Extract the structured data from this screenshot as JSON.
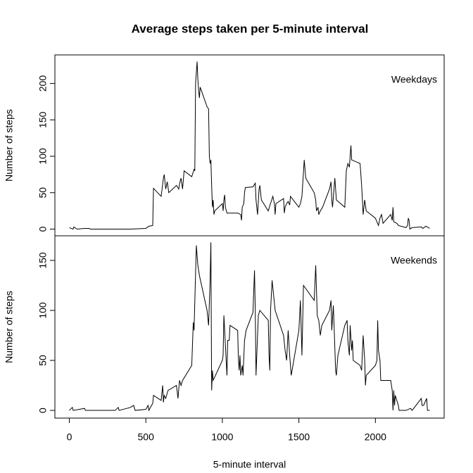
{
  "chart_data": [
    {
      "type": "line",
      "title": "Average steps taken per 5-minute interval",
      "ylabel": "Number of steps",
      "label": "Weekdays",
      "color": "#000000",
      "x": [
        0,
        25,
        30,
        50,
        100,
        130,
        135,
        200,
        300,
        400,
        500,
        520,
        545,
        550,
        600,
        615,
        620,
        630,
        640,
        650,
        700,
        715,
        720,
        730,
        740,
        750,
        800,
        815,
        820,
        825,
        835,
        840,
        845,
        850,
        855,
        900,
        910,
        915,
        920,
        925,
        930,
        935,
        940,
        945,
        950,
        1000,
        1005,
        1010,
        1015,
        1020,
        1030,
        1100,
        1120,
        1125,
        1130,
        1140,
        1145,
        1150,
        1200,
        1215,
        1220,
        1230,
        1240,
        1245,
        1255,
        1300,
        1310,
        1330,
        1340,
        1345,
        1350,
        1400,
        1405,
        1410,
        1420,
        1430,
        1440,
        1445,
        1500,
        1510,
        1520,
        1535,
        1545,
        1600,
        1610,
        1615,
        1625,
        1630,
        1640,
        1655,
        1700,
        1710,
        1715,
        1720,
        1735,
        1745,
        1800,
        1810,
        1820,
        1830,
        1840,
        1845,
        1900,
        1910,
        1915,
        1920,
        1930,
        1940,
        2000,
        2010,
        2020,
        2030,
        2040,
        2050,
        2100,
        2110,
        2115,
        2120,
        2140,
        2150,
        2200,
        2210,
        2215,
        2220,
        2225,
        2240,
        2300,
        2310,
        2330,
        2355
      ],
      "values": [
        2,
        0,
        3,
        0,
        1,
        1,
        0,
        0,
        0,
        0,
        1,
        4,
        5,
        56,
        45,
        70,
        75,
        55,
        65,
        50,
        60,
        55,
        62,
        70,
        55,
        80,
        72,
        82,
        80,
        200,
        230,
        205,
        190,
        180,
        195,
        168,
        165,
        100,
        90,
        95,
        60,
        30,
        40,
        20,
        25,
        35,
        25,
        40,
        47,
        30,
        22,
        22,
        20,
        12,
        30,
        35,
        50,
        57,
        58,
        63,
        40,
        20,
        55,
        60,
        40,
        25,
        32,
        45,
        35,
        20,
        35,
        42,
        22,
        30,
        35,
        38,
        33,
        45,
        30,
        35,
        45,
        95,
        70,
        50,
        40,
        25,
        30,
        20,
        25,
        30,
        55,
        65,
        40,
        30,
        70,
        40,
        30,
        80,
        90,
        85,
        115,
        95,
        90,
        60,
        40,
        20,
        40,
        25,
        15,
        10,
        5,
        15,
        20,
        8,
        20,
        12,
        30,
        10,
        8,
        5,
        2,
        5,
        15,
        12,
        0,
        2,
        3,
        1,
        4,
        1
      ],
      "xlim": [
        -94.2,
        2449.2
      ],
      "ylim": [
        -9.2,
        239.2
      ],
      "yticks": [
        0,
        50,
        100,
        150,
        200
      ]
    },
    {
      "type": "line",
      "ylabel": "Number of steps",
      "label": "Weekends",
      "xlabel": "5-minute interval",
      "color": "#000000",
      "x": [
        0,
        20,
        25,
        100,
        105,
        200,
        300,
        320,
        325,
        400,
        420,
        430,
        500,
        515,
        520,
        530,
        545,
        550,
        600,
        610,
        615,
        620,
        630,
        645,
        700,
        710,
        720,
        730,
        740,
        800,
        810,
        815,
        830,
        840,
        850,
        900,
        910,
        920,
        925,
        930,
        935,
        940,
        1000,
        1005,
        1010,
        1015,
        1030,
        1035,
        1045,
        1050,
        1100,
        1105,
        1110,
        1115,
        1120,
        1130,
        1135,
        1145,
        1155,
        1200,
        1210,
        1215,
        1220,
        1235,
        1245,
        1300,
        1305,
        1310,
        1315,
        1325,
        1335,
        1345,
        1400,
        1410,
        1420,
        1430,
        1440,
        1450,
        1500,
        1510,
        1520,
        1530,
        1600,
        1610,
        1620,
        1630,
        1640,
        1650,
        1700,
        1710,
        1715,
        1725,
        1730,
        1740,
        1745,
        1755,
        1800,
        1815,
        1820,
        1830,
        1835,
        1845,
        1850,
        1855,
        1900,
        1910,
        1920,
        1930,
        1935,
        1940,
        2000,
        2010,
        2015,
        2020,
        2030,
        2035,
        2100,
        2110,
        2115,
        2120,
        2125,
        2130,
        2140,
        2150,
        2155,
        2200,
        2230,
        2240,
        2300,
        2305,
        2315,
        2335,
        2340,
        2355
      ],
      "values": [
        0,
        3,
        0,
        2,
        0,
        0,
        0,
        3,
        0,
        3,
        5,
        0,
        1,
        5,
        0,
        3,
        7,
        15,
        10,
        25,
        8,
        15,
        12,
        20,
        25,
        12,
        30,
        25,
        30,
        45,
        88,
        80,
        165,
        145,
        135,
        100,
        85,
        130,
        168,
        20,
        40,
        30,
        50,
        55,
        95,
        80,
        35,
        70,
        70,
        85,
        80,
        50,
        40,
        55,
        35,
        45,
        35,
        70,
        80,
        98,
        140,
        100,
        35,
        95,
        100,
        90,
        55,
        40,
        100,
        130,
        115,
        100,
        75,
        60,
        50,
        80,
        55,
        35,
        80,
        110,
        55,
        125,
        110,
        145,
        95,
        90,
        75,
        85,
        100,
        110,
        80,
        105,
        85,
        40,
        35,
        55,
        85,
        90,
        70,
        55,
        85,
        60,
        70,
        50,
        45,
        40,
        75,
        50,
        25,
        35,
        45,
        50,
        90,
        60,
        50,
        30,
        30,
        20,
        0,
        20,
        5,
        15,
        10,
        5,
        0,
        0,
        2,
        0,
        12,
        5,
        5,
        12,
        0,
        0
      ],
      "xlim": [
        -94.2,
        2449.2
      ],
      "ylim": [
        -7.7,
        174.6
      ],
      "yticks": [
        0,
        50,
        100,
        150
      ],
      "xticks": [
        0,
        500,
        1000,
        1500,
        2000
      ]
    }
  ]
}
